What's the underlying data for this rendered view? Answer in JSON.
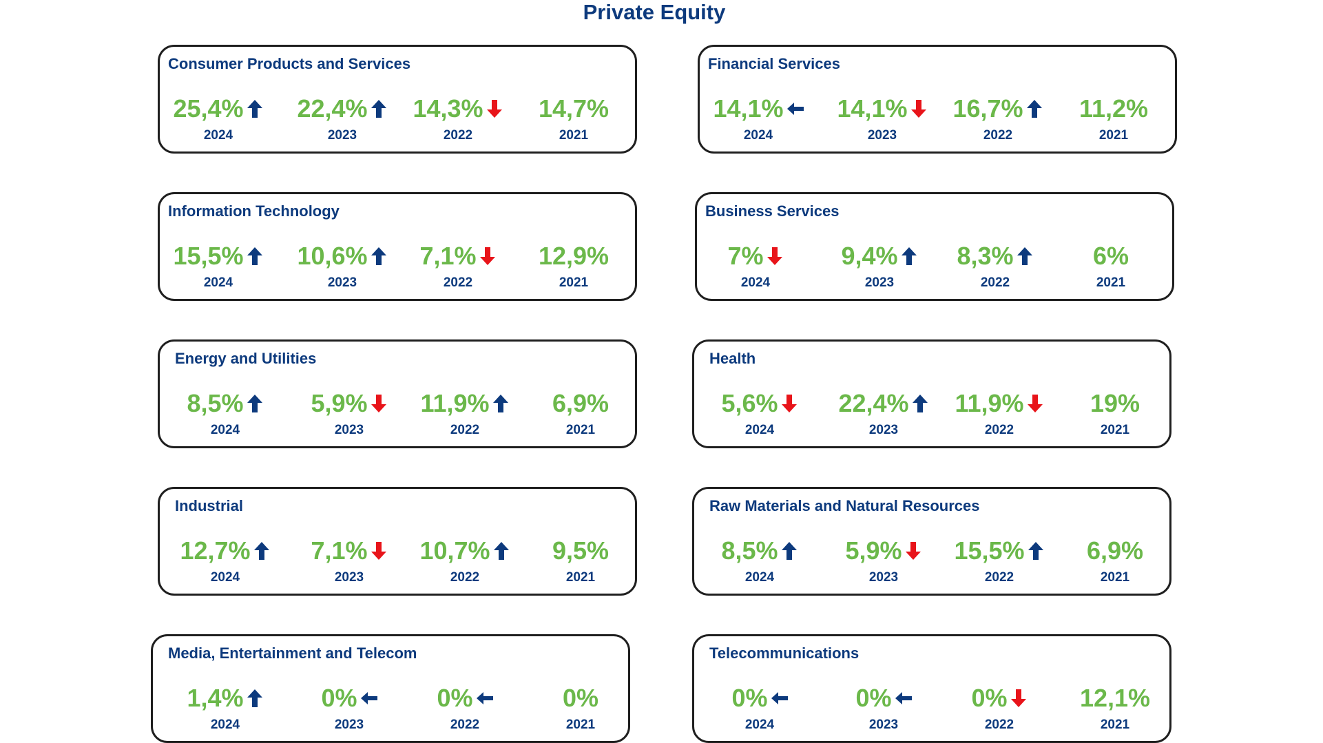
{
  "title": "Private Equity",
  "colors": {
    "title": "#0d3a7d",
    "value": "#6bb84a",
    "up": "#0d3a7d",
    "down": "#e8141a",
    "flat": "#0d3a7d"
  },
  "cards": [
    {
      "title": "Consumer Products and Services",
      "metrics": [
        {
          "value": "25,4%",
          "year": "2024",
          "trend": "up"
        },
        {
          "value": "22,4%",
          "year": "2023",
          "trend": "up"
        },
        {
          "value": "14,3%",
          "year": "2022",
          "trend": "down"
        },
        {
          "value": "14,7%",
          "year": "2021",
          "trend": "none"
        }
      ]
    },
    {
      "title": "Financial Services",
      "metrics": [
        {
          "value": "14,1%",
          "year": "2024",
          "trend": "flat"
        },
        {
          "value": "14,1%",
          "year": "2023",
          "trend": "down"
        },
        {
          "value": "16,7%",
          "year": "2022",
          "trend": "up"
        },
        {
          "value": "11,2%",
          "year": "2021",
          "trend": "none"
        }
      ]
    },
    {
      "title": "Information Technology",
      "metrics": [
        {
          "value": "15,5%",
          "year": "2024",
          "trend": "up"
        },
        {
          "value": "10,6%",
          "year": "2023",
          "trend": "up"
        },
        {
          "value": "7,1%",
          "year": "2022",
          "trend": "down"
        },
        {
          "value": "12,9%",
          "year": "2021",
          "trend": "none"
        }
      ]
    },
    {
      "title": "Business Services",
      "metrics": [
        {
          "value": "7%",
          "year": "2024",
          "trend": "down"
        },
        {
          "value": "9,4%",
          "year": "2023",
          "trend": "up"
        },
        {
          "value": "8,3%",
          "year": "2022",
          "trend": "up"
        },
        {
          "value": "6%",
          "year": "2021",
          "trend": "none"
        }
      ]
    },
    {
      "title": "Energy and Utilities",
      "metrics": [
        {
          "value": "8,5%",
          "year": "2024",
          "trend": "up"
        },
        {
          "value": "5,9%",
          "year": "2023",
          "trend": "down"
        },
        {
          "value": "11,9%",
          "year": "2022",
          "trend": "up"
        },
        {
          "value": "6,9%",
          "year": "2021",
          "trend": "none"
        }
      ]
    },
    {
      "title": "Health",
      "metrics": [
        {
          "value": "5,6%",
          "year": "2024",
          "trend": "down"
        },
        {
          "value": "22,4%",
          "year": "2023",
          "trend": "up"
        },
        {
          "value": "11,9%",
          "year": "2022",
          "trend": "down"
        },
        {
          "value": "19%",
          "year": "2021",
          "trend": "none"
        }
      ]
    },
    {
      "title": "Industrial",
      "metrics": [
        {
          "value": "12,7%",
          "year": "2024",
          "trend": "up"
        },
        {
          "value": "7,1%",
          "year": "2023",
          "trend": "down"
        },
        {
          "value": "10,7%",
          "year": "2022",
          "trend": "up"
        },
        {
          "value": "9,5%",
          "year": "2021",
          "trend": "none"
        }
      ]
    },
    {
      "title": "Raw Materials and Natural Resources",
      "metrics": [
        {
          "value": "8,5%",
          "year": "2024",
          "trend": "up"
        },
        {
          "value": "5,9%",
          "year": "2023",
          "trend": "down"
        },
        {
          "value": "15,5%",
          "year": "2022",
          "trend": "up"
        },
        {
          "value": "6,9%",
          "year": "2021",
          "trend": "none"
        }
      ]
    },
    {
      "title": "Media, Entertainment and Telecom",
      "metrics": [
        {
          "value": "1,4%",
          "year": "2024",
          "trend": "up"
        },
        {
          "value": "0%",
          "year": "2023",
          "trend": "flat"
        },
        {
          "value": "0%",
          "year": "2022",
          "trend": "flat"
        },
        {
          "value": "0%",
          "year": "2021",
          "trend": "none"
        }
      ]
    },
    {
      "title": "Telecommunications",
      "metrics": [
        {
          "value": "0%",
          "year": "2024",
          "trend": "flat"
        },
        {
          "value": "0%",
          "year": "2023",
          "trend": "flat"
        },
        {
          "value": "0%",
          "year": "2022",
          "trend": "down"
        },
        {
          "value": "12,1%",
          "year": "2021",
          "trend": "none"
        }
      ]
    }
  ]
}
